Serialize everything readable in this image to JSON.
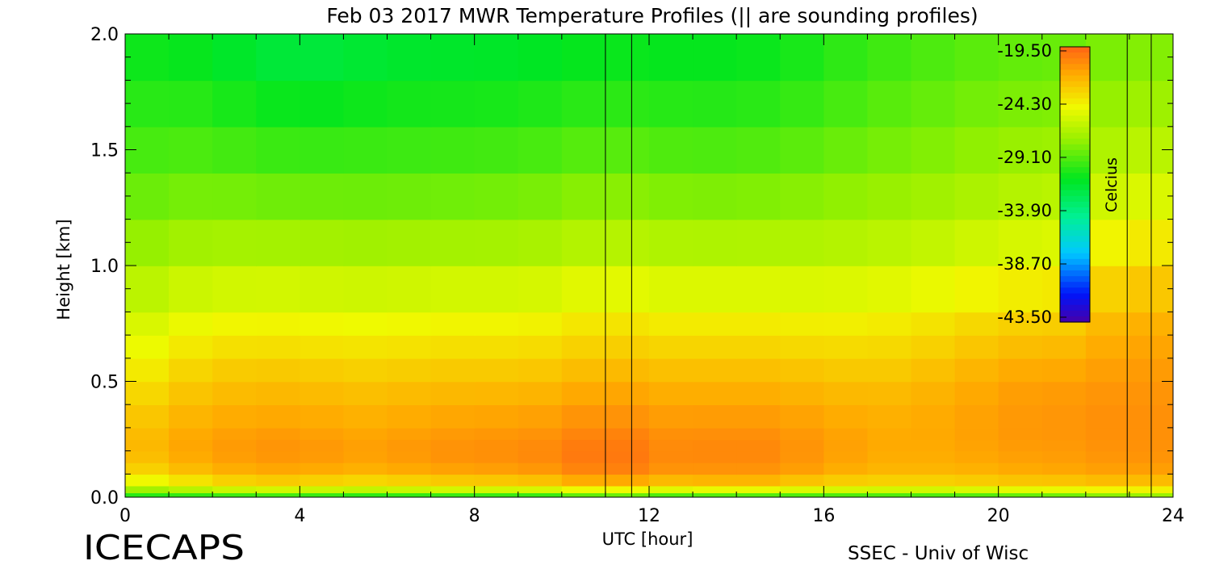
{
  "chart_data": {
    "type": "heatmap",
    "title": "Feb 03 2017 MWR Temperature Profiles (|| are sounding profiles)",
    "xlabel": "UTC [hour]",
    "ylabel": "Height [km]",
    "xlim": [
      0,
      24
    ],
    "ylim": [
      0,
      2.0
    ],
    "x_ticks": [
      0,
      4,
      8,
      12,
      16,
      20,
      24
    ],
    "y_ticks": [
      0.0,
      0.5,
      1.0,
      1.5,
      2.0
    ],
    "x_tick_labels": [
      "0",
      "4",
      "8",
      "12",
      "16",
      "20",
      "24"
    ],
    "y_tick_labels": [
      "0.0",
      "0.5",
      "1.0",
      "1.5",
      "2.0"
    ],
    "colorbar": {
      "label": "Celcius",
      "ticks": [
        "-19.50",
        "-24.30",
        "-29.10",
        "-33.90",
        "-38.70",
        "-43.50"
      ],
      "range": [
        -43.5,
        -19.5
      ]
    },
    "sounding_times": [
      11.0,
      11.6,
      22.95,
      23.5
    ],
    "heights_km": [
      0.0,
      0.02,
      0.05,
      0.1,
      0.15,
      0.2,
      0.25,
      0.3,
      0.4,
      0.5,
      0.6,
      0.7,
      0.8,
      1.0,
      1.2,
      1.4,
      1.6,
      1.8,
      2.0
    ],
    "times_hr": [
      0,
      1,
      2,
      3,
      4,
      5,
      6,
      7,
      8,
      9,
      10,
      11,
      12,
      13,
      14,
      15,
      16,
      17,
      18,
      19,
      20,
      21,
      22,
      23,
      24
    ],
    "temperature_c": [
      [
        -31.5,
        -31.5,
        -31.5,
        -31.5,
        -31.5,
        -32.0,
        -32.0,
        -32.0,
        -32.0,
        -32.0,
        -32.0,
        -30.0,
        -31.5,
        -31.5,
        -31.5,
        -31.5,
        -31.5,
        -31.0,
        -31.0,
        -31.0,
        -31.0,
        -30.5,
        -30.5,
        -29.0,
        -29.5
      ],
      [
        -29.0,
        -28.5,
        -28.0,
        -27.5,
        -27.5,
        -28.0,
        -28.0,
        -27.5,
        -27.5,
        -27.5,
        -27.5,
        -26.0,
        -27.0,
        -27.0,
        -26.5,
        -27.0,
        -27.0,
        -27.5,
        -27.5,
        -27.5,
        -27.0,
        -26.5,
        -26.5,
        -25.5,
        -26.0
      ],
      [
        -26.0,
        -25.5,
        -24.5,
        -24.0,
        -24.0,
        -24.5,
        -24.5,
        -24.0,
        -24.0,
        -24.0,
        -23.5,
        -22.5,
        -23.5,
        -23.5,
        -23.0,
        -23.5,
        -24.0,
        -24.0,
        -24.0,
        -24.0,
        -23.5,
        -23.5,
        -23.5,
        -23.0,
        -23.5
      ],
      [
        -24.0,
        -23.3,
        -22.5,
        -22.2,
        -22.0,
        -22.5,
        -22.5,
        -22.0,
        -22.0,
        -21.7,
        -21.5,
        -20.3,
        -21.2,
        -21.5,
        -21.2,
        -21.5,
        -22.0,
        -22.5,
        -22.5,
        -22.5,
        -22.3,
        -22.0,
        -22.0,
        -21.5,
        -22.0
      ],
      [
        -23.2,
        -22.5,
        -21.8,
        -21.5,
        -21.3,
        -21.8,
        -21.7,
        -21.3,
        -21.2,
        -21.0,
        -20.8,
        -19.8,
        -20.7,
        -21.0,
        -20.7,
        -21.0,
        -21.5,
        -22.0,
        -22.2,
        -22.0,
        -21.8,
        -21.5,
        -21.6,
        -21.0,
        -21.5
      ],
      [
        -22.8,
        -22.0,
        -21.5,
        -21.2,
        -21.0,
        -21.5,
        -21.5,
        -21.0,
        -21.0,
        -20.8,
        -20.6,
        -19.8,
        -20.6,
        -20.9,
        -20.5,
        -20.9,
        -21.3,
        -21.8,
        -22.0,
        -21.8,
        -21.6,
        -21.3,
        -21.4,
        -20.8,
        -21.3
      ],
      [
        -22.8,
        -22.0,
        -21.5,
        -21.3,
        -21.2,
        -21.6,
        -21.6,
        -21.2,
        -21.2,
        -21.0,
        -20.9,
        -20.0,
        -20.8,
        -21.0,
        -20.7,
        -21.0,
        -21.4,
        -21.8,
        -22.0,
        -21.8,
        -21.5,
        -21.2,
        -21.3,
        -20.8,
        -21.3
      ],
      [
        -23.0,
        -22.3,
        -21.8,
        -21.6,
        -21.5,
        -21.9,
        -21.9,
        -21.5,
        -21.5,
        -21.3,
        -21.2,
        -20.4,
        -21.1,
        -21.2,
        -21.0,
        -21.2,
        -21.6,
        -21.9,
        -22.0,
        -21.7,
        -21.4,
        -21.1,
        -21.2,
        -20.7,
        -21.2
      ],
      [
        -23.6,
        -22.8,
        -22.3,
        -22.2,
        -22.1,
        -22.4,
        -22.4,
        -22.1,
        -22.1,
        -22.0,
        -21.8,
        -21.2,
        -21.7,
        -21.8,
        -21.7,
        -21.8,
        -22.1,
        -22.3,
        -22.2,
        -21.9,
        -21.5,
        -21.2,
        -21.3,
        -20.8,
        -21.3
      ],
      [
        -24.3,
        -23.4,
        -22.8,
        -22.7,
        -22.6,
        -22.9,
        -22.9,
        -22.7,
        -22.7,
        -22.7,
        -22.5,
        -21.9,
        -22.3,
        -22.4,
        -22.3,
        -22.4,
        -22.6,
        -22.8,
        -22.6,
        -22.2,
        -21.8,
        -21.5,
        -21.6,
        -21.0,
        -21.5
      ],
      [
        -25.0,
        -24.1,
        -23.5,
        -23.4,
        -23.4,
        -23.6,
        -23.6,
        -23.4,
        -23.4,
        -23.4,
        -23.2,
        -22.7,
        -23.0,
        -23.1,
        -23.0,
        -23.1,
        -23.3,
        -23.4,
        -23.2,
        -22.8,
        -22.4,
        -22.1,
        -22.2,
        -21.3,
        -21.8
      ],
      [
        -25.6,
        -24.8,
        -24.3,
        -24.2,
        -24.2,
        -24.4,
        -24.4,
        -24.2,
        -24.2,
        -24.2,
        -24.0,
        -23.4,
        -23.8,
        -23.9,
        -23.8,
        -23.9,
        -24.0,
        -24.0,
        -23.8,
        -23.4,
        -23.0,
        -22.8,
        -22.8,
        -21.6,
        -22.2
      ],
      [
        -26.2,
        -25.5,
        -25.1,
        -25.0,
        -25.0,
        -25.2,
        -25.2,
        -25.0,
        -25.0,
        -25.0,
        -24.8,
        -24.2,
        -24.6,
        -24.7,
        -24.6,
        -24.7,
        -24.8,
        -24.7,
        -24.5,
        -24.1,
        -23.7,
        -23.5,
        -23.5,
        -22.0,
        -22.8
      ],
      [
        -27.4,
        -26.8,
        -26.5,
        -26.5,
        -26.5,
        -26.6,
        -26.6,
        -26.5,
        -26.5,
        -26.5,
        -26.3,
        -25.8,
        -26.2,
        -26.2,
        -26.2,
        -26.2,
        -26.2,
        -26.0,
        -25.8,
        -25.5,
        -25.1,
        -24.9,
        -24.8,
        -23.0,
        -24.0
      ],
      [
        -28.4,
        -28.0,
        -27.8,
        -27.9,
        -27.9,
        -28.0,
        -28.0,
        -27.9,
        -27.9,
        -27.8,
        -27.6,
        -27.2,
        -27.5,
        -27.6,
        -27.6,
        -27.5,
        -27.4,
        -27.2,
        -27.0,
        -26.7,
        -26.3,
        -26.1,
        -26.0,
        -24.6,
        -25.2
      ],
      [
        -29.2,
        -28.9,
        -28.9,
        -29.1,
        -29.2,
        -29.2,
        -29.2,
        -29.1,
        -29.1,
        -29.0,
        -28.8,
        -28.4,
        -28.7,
        -28.8,
        -28.8,
        -28.6,
        -28.4,
        -28.1,
        -27.9,
        -27.6,
        -27.3,
        -27.1,
        -27.0,
        -25.8,
        -26.3
      ],
      [
        -29.9,
        -29.7,
        -29.9,
        -30.2,
        -30.4,
        -30.3,
        -30.2,
        -30.1,
        -30.1,
        -30.0,
        -29.8,
        -29.5,
        -29.7,
        -29.8,
        -29.8,
        -29.6,
        -29.3,
        -28.9,
        -28.6,
        -28.3,
        -28.0,
        -27.9,
        -27.8,
        -26.8,
        -27.2
      ],
      [
        -30.5,
        -30.4,
        -30.7,
        -31.2,
        -31.5,
        -31.3,
        -31.1,
        -31.0,
        -31.0,
        -30.9,
        -30.7,
        -30.4,
        -30.6,
        -30.6,
        -30.6,
        -30.4,
        -30.0,
        -29.5,
        -29.2,
        -28.9,
        -28.6,
        -28.5,
        -28.4,
        -27.6,
        -28.0
      ],
      [
        -31.0,
        -31.0,
        -31.4,
        -32.0,
        -32.3,
        -32.1,
        -31.8,
        -31.7,
        -31.7,
        -31.6,
        -31.4,
        -31.1,
        -31.2,
        -31.2,
        -31.2,
        -31.0,
        -30.5,
        -30.0,
        -29.7,
        -29.4,
        -29.1,
        -29.0,
        -28.9,
        -28.2,
        -28.5
      ]
    ]
  },
  "branding": {
    "logo_text": "ICECAPS",
    "credit": "SSEC - Univ of Wisc"
  }
}
